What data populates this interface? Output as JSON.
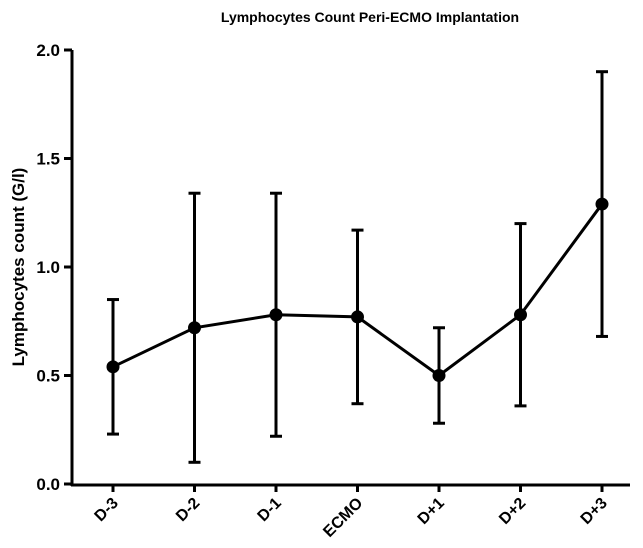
{
  "chart_data": {
    "type": "line",
    "title": "Lymphocytes Count Peri-ECMO Implantation",
    "y_label": "Lymphocytes count (G/l)",
    "categories": [
      "D-3",
      "D-2",
      "D-1",
      "ECMO",
      "D+1",
      "D+2",
      "D+3"
    ],
    "values": [
      0.54,
      0.72,
      0.78,
      0.77,
      0.5,
      0.78,
      1.29
    ],
    "errors": [
      0.31,
      0.62,
      0.56,
      0.4,
      0.22,
      0.42,
      0.61
    ],
    "color": "#000000",
    "ylim": [
      0,
      2
    ],
    "yticks": [
      {
        "value": 0,
        "label": "0.0"
      },
      0.5,
      {
        "value": 1,
        "label": "1.0"
      },
      1.5,
      {
        "value": 2,
        "label": "2.0"
      }
    ],
    "grid": false
  }
}
